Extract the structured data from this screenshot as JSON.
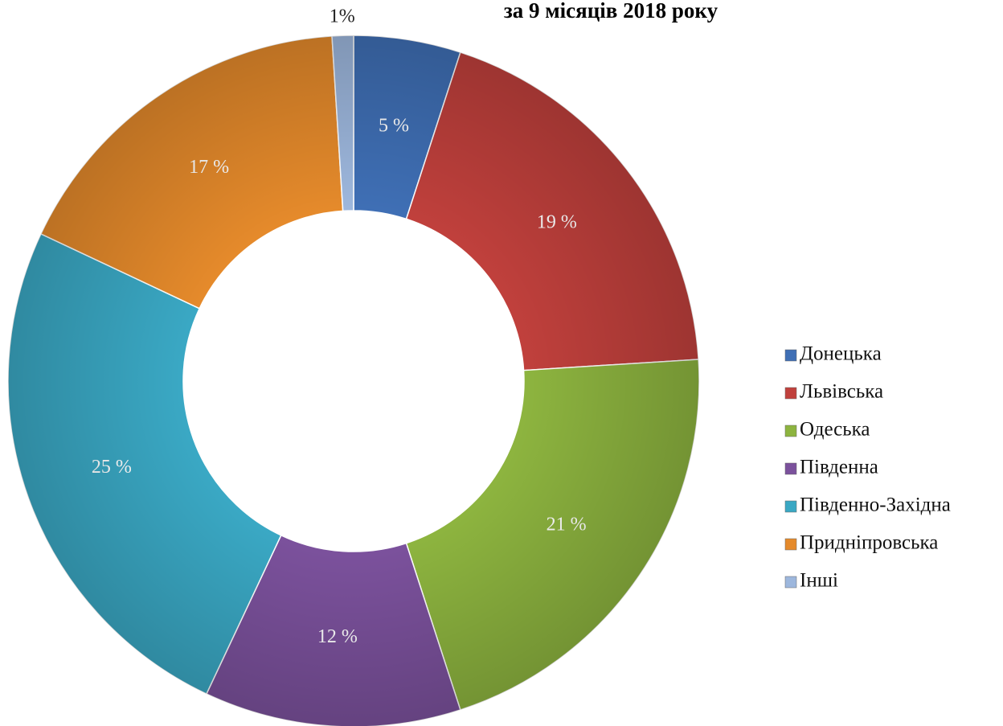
{
  "chart_data": {
    "type": "donut",
    "title": "за 9 місяців 2018 року",
    "categories": [
      "Донецька",
      "Львівська",
      "Одеська",
      "Південна",
      "Південно-Західна",
      "Придніпровська",
      "Інші"
    ],
    "values": [
      5,
      19,
      21,
      12,
      25,
      17,
      1
    ],
    "value_labels": [
      "5 %",
      "19 %",
      "21 %",
      "12 %",
      "25 %",
      "17 %",
      "1%"
    ],
    "colors": [
      "#3f6fb5",
      "#c0403c",
      "#8db43f",
      "#7b519c",
      "#3aa8c4",
      "#e58a2b",
      "#9db7dd"
    ],
    "legend": "right"
  }
}
